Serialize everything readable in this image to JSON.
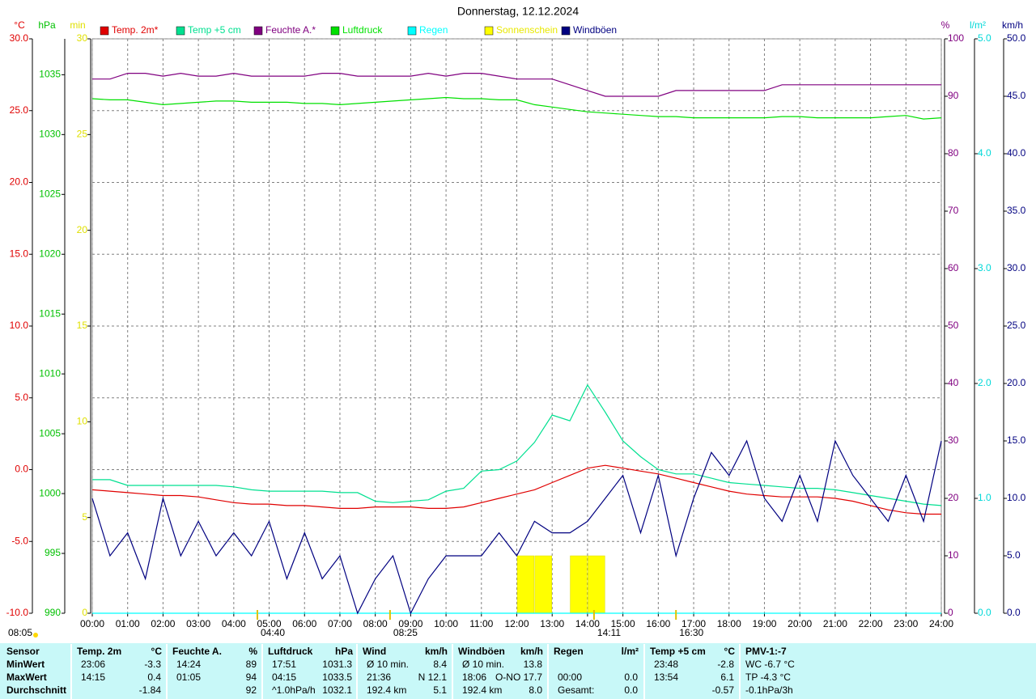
{
  "chart_data": {
    "type": "line",
    "title": "Donnerstag, 12.12.2024",
    "xlim": [
      0,
      24
    ],
    "xticks": [
      {
        "value": 0,
        "label": "00:00"
      },
      {
        "value": 1,
        "label": "01:00"
      },
      {
        "value": 2,
        "label": "02:00"
      },
      {
        "value": 3,
        "label": "03:00"
      },
      {
        "value": 4,
        "label": "04:00"
      },
      {
        "value": 5,
        "label": "05:00"
      },
      {
        "value": 6,
        "label": "06:00"
      },
      {
        "value": 7,
        "label": "07:00"
      },
      {
        "value": 8,
        "label": "08:00"
      },
      {
        "value": 9,
        "label": "09:00"
      },
      {
        "value": 10,
        "label": "10:00"
      },
      {
        "value": 11,
        "label": "11:00"
      },
      {
        "value": 12,
        "label": "12:00"
      },
      {
        "value": 13,
        "label": "13:00"
      },
      {
        "value": 14,
        "label": "14:00"
      },
      {
        "value": 15,
        "label": "15:00"
      },
      {
        "value": 16,
        "label": "16:00"
      },
      {
        "value": 17,
        "label": "17:00"
      },
      {
        "value": 18,
        "label": "18:00"
      },
      {
        "value": 19,
        "label": "19:00"
      },
      {
        "value": 20,
        "label": "20:00"
      },
      {
        "value": 21,
        "label": "21:00"
      },
      {
        "value": 22,
        "label": "22:00"
      },
      {
        "value": 23,
        "label": "23:00"
      },
      {
        "value": 24,
        "label": "24:00"
      }
    ],
    "xgrid": true,
    "x": [
      0,
      0.5,
      1,
      1.5,
      2,
      2.5,
      3,
      3.5,
      4,
      4.5,
      5,
      5.5,
      6,
      6.5,
      7,
      7.5,
      8,
      8.5,
      9,
      9.5,
      10,
      10.5,
      11,
      11.5,
      12,
      12.5,
      13,
      13.5,
      14,
      14.5,
      15,
      15.5,
      16,
      16.5,
      17,
      17.5,
      18,
      18.5,
      19,
      19.5,
      20,
      20.5,
      21,
      21.5,
      22,
      22.5,
      23,
      23.5,
      24
    ],
    "axes": {
      "temp": {
        "unit": "°C",
        "color": "#e00000",
        "ylim": [
          -10,
          30
        ],
        "grid": true,
        "yticks": [
          {
            "value": -10,
            "label": "-10.0"
          },
          {
            "value": -5,
            "label": "-5.0"
          },
          {
            "value": 0,
            "label": "0.0"
          },
          {
            "value": 5,
            "label": "5.0"
          },
          {
            "value": 10,
            "label": "10.0"
          },
          {
            "value": 15,
            "label": "15.0"
          },
          {
            "value": 20,
            "label": "20.0"
          },
          {
            "value": 25,
            "label": "25.0"
          },
          {
            "value": 30,
            "label": "30.0"
          }
        ]
      },
      "pressure": {
        "unit": "hPa",
        "color": "#00c000",
        "ylim": [
          990,
          1038
        ],
        "yticks": [
          990,
          995,
          1000,
          1005,
          1010,
          1015,
          1020,
          1025,
          1030,
          1035
        ]
      },
      "sun": {
        "unit": "min",
        "color": "#e0e000",
        "ylim": [
          0,
          30
        ],
        "yticks": [
          0,
          5,
          10,
          15,
          20,
          25,
          30
        ]
      },
      "humidity": {
        "unit": "%",
        "color": "#800080",
        "ylim": [
          0,
          100
        ],
        "yticks": [
          0,
          10,
          20,
          30,
          40,
          50,
          60,
          70,
          80,
          90,
          100
        ]
      },
      "rain": {
        "unit": "l/m²",
        "color": "#00d8d8",
        "ylim": [
          0,
          5
        ],
        "yticks": [
          {
            "value": 0,
            "label": "0.0"
          },
          {
            "value": 1,
            "label": "1.0"
          },
          {
            "value": 2,
            "label": "2.0"
          },
          {
            "value": 3,
            "label": "3.0"
          },
          {
            "value": 4,
            "label": "4.0"
          },
          {
            "value": 5,
            "label": "5.0"
          }
        ]
      },
      "wind": {
        "unit": "km/h",
        "color": "#000080",
        "ylim": [
          0,
          50
        ],
        "yticks": [
          {
            "value": 0,
            "label": "0.0"
          },
          {
            "value": 5,
            "label": "5.0"
          },
          {
            "value": 10,
            "label": "10.0"
          },
          {
            "value": 15,
            "label": "15.0"
          },
          {
            "value": 20,
            "label": "20.0"
          },
          {
            "value": 25,
            "label": "25.0"
          },
          {
            "value": 30,
            "label": "30.0"
          },
          {
            "value": 35,
            "label": "35.0"
          },
          {
            "value": 40,
            "label": "40.0"
          },
          {
            "value": 45,
            "label": "45.0"
          },
          {
            "value": 50,
            "label": "50.0"
          }
        ]
      }
    },
    "series": [
      {
        "name": "Temp. 2m*",
        "color": "#e00000",
        "axis": "temp",
        "type": "line",
        "values": [
          -1.4,
          -1.5,
          -1.6,
          -1.7,
          -1.8,
          -1.8,
          -1.9,
          -2.1,
          -2.3,
          -2.4,
          -2.4,
          -2.5,
          -2.5,
          -2.6,
          -2.7,
          -2.7,
          -2.6,
          -2.6,
          -2.6,
          -2.7,
          -2.7,
          -2.6,
          -2.3,
          -2.0,
          -1.7,
          -1.4,
          -0.9,
          -0.4,
          0.1,
          0.3,
          0.1,
          -0.1,
          -0.3,
          -0.6,
          -0.9,
          -1.2,
          -1.5,
          -1.7,
          -1.8,
          -1.9,
          -1.9,
          -1.9,
          -2.0,
          -2.2,
          -2.5,
          -2.8,
          -3.0,
          -3.1,
          -3.1
        ]
      },
      {
        "name": "Temp +5 cm",
        "color": "#00e090",
        "axis": "temp",
        "type": "line",
        "values": [
          -0.7,
          -0.7,
          -1.1,
          -1.1,
          -1.1,
          -1.1,
          -1.1,
          -1.1,
          -1.2,
          -1.4,
          -1.5,
          -1.5,
          -1.5,
          -1.5,
          -1.6,
          -1.6,
          -2.2,
          -2.3,
          -2.2,
          -2.1,
          -1.5,
          -1.3,
          -0.1,
          0.0,
          0.6,
          1.9,
          3.8,
          3.4,
          5.9,
          4.0,
          2.0,
          0.9,
          0.0,
          -0.3,
          -0.3,
          -0.6,
          -0.9,
          -1.0,
          -1.1,
          -1.2,
          -1.3,
          -1.3,
          -1.4,
          -1.6,
          -1.8,
          -2.0,
          -2.2,
          -2.4,
          -2.5
        ]
      },
      {
        "name": "Feuchte A.*",
        "color": "#800080",
        "axis": "humidity",
        "type": "line",
        "values": [
          93,
          93,
          94,
          94,
          93.5,
          94,
          93.5,
          93.5,
          94,
          93.5,
          93.5,
          93.5,
          93.5,
          94,
          94,
          93.5,
          93.5,
          93.5,
          93.5,
          94,
          93.5,
          94,
          94,
          93.5,
          93,
          93,
          93,
          92,
          91,
          90,
          90,
          90,
          90,
          91,
          91,
          91,
          91,
          91,
          91,
          92,
          92,
          92,
          92,
          92,
          92,
          92,
          92,
          92,
          92
        ]
      },
      {
        "name": "Luftdruck",
        "color": "#00e000",
        "axis": "pressure",
        "type": "line",
        "values": [
          1033.0,
          1032.9,
          1032.9,
          1032.7,
          1032.5,
          1032.6,
          1032.7,
          1032.8,
          1032.8,
          1032.7,
          1032.7,
          1032.7,
          1032.6,
          1032.6,
          1032.5,
          1032.6,
          1032.7,
          1032.8,
          1032.9,
          1033.0,
          1033.1,
          1033.0,
          1033.0,
          1032.9,
          1032.9,
          1032.5,
          1032.3,
          1032.1,
          1031.9,
          1031.8,
          1031.7,
          1031.6,
          1031.5,
          1031.5,
          1031.4,
          1031.4,
          1031.4,
          1031.4,
          1031.4,
          1031.5,
          1031.5,
          1031.4,
          1031.4,
          1031.4,
          1031.4,
          1031.5,
          1031.6,
          1031.3,
          1031.4
        ]
      },
      {
        "name": "Regen",
        "color": "#00ffff",
        "axis": "rain",
        "type": "line",
        "values": [
          0,
          0,
          0,
          0,
          0,
          0,
          0,
          0,
          0,
          0,
          0,
          0,
          0,
          0,
          0,
          0,
          0,
          0,
          0,
          0,
          0,
          0,
          0,
          0,
          0,
          0,
          0,
          0,
          0,
          0,
          0,
          0,
          0,
          0,
          0,
          0,
          0,
          0,
          0,
          0,
          0,
          0,
          0,
          0,
          0,
          0,
          0,
          0,
          0
        ]
      },
      {
        "name": "Sonnenschein",
        "color": "#ffff00",
        "axis": "sun",
        "type": "bar",
        "x": [
          12.25,
          12.75,
          13.75,
          14.25
        ],
        "values": [
          3,
          3,
          3,
          3
        ]
      },
      {
        "name": "Windböen",
        "color": "#000080",
        "axis": "wind",
        "type": "line",
        "values": [
          10,
          5,
          7,
          3,
          10,
          5,
          8,
          5,
          7,
          5,
          8,
          3,
          7,
          3,
          5,
          0,
          3,
          5,
          0,
          3,
          5,
          5,
          5,
          7,
          5,
          8,
          7,
          7,
          8,
          10,
          12,
          7,
          12,
          5,
          10,
          14,
          12,
          15,
          10,
          8,
          12,
          8,
          15,
          12,
          10,
          8,
          12,
          8,
          15
        ]
      }
    ],
    "annotations": [
      {
        "x": 4.667,
        "label": "04:40"
      },
      {
        "x": 8.417,
        "label": "08:25"
      },
      {
        "x": 14.183,
        "label": "14:11"
      },
      {
        "x": 16.5,
        "label": "16:30"
      }
    ],
    "corner_note": "08:05"
  },
  "table": {
    "row_labels": [
      "Sensor",
      "MinWert",
      "MaxWert",
      "Durchschnitt"
    ],
    "groups": [
      {
        "name": "Temp. 2m",
        "unit": "°C",
        "rows": [
          [
            "23:06",
            "-3.3"
          ],
          [
            "14:15",
            "0.4"
          ],
          [
            null,
            "-1.84"
          ]
        ]
      },
      {
        "name": "Feuchte A.",
        "unit": "%",
        "rows": [
          [
            "14:24",
            "89"
          ],
          [
            "01:05",
            "94"
          ],
          [
            null,
            "92"
          ]
        ]
      },
      {
        "name": "Luftdruck",
        "unit": "hPa",
        "rows": [
          [
            "17:51",
            "1031.3"
          ],
          [
            "04:15",
            "1033.5"
          ],
          [
            "^1.0hPa/h",
            "1032.1"
          ]
        ]
      },
      {
        "name": "Wind",
        "unit": "km/h",
        "rows": [
          [
            "Ø 10 min.",
            "8.4"
          ],
          [
            "21:36",
            "N 12.1"
          ],
          [
            "192.4 km",
            "5.1"
          ]
        ]
      },
      {
        "name": "Windböen",
        "unit": "km/h",
        "rows": [
          [
            "Ø 10 min.",
            "13.8"
          ],
          [
            "18:06",
            "O-NO 17.7"
          ],
          [
            "192.4 km",
            "8.0"
          ]
        ]
      },
      {
        "name": "Regen",
        "unit": "l/m²",
        "rows": [
          [
            null,
            null
          ],
          [
            "00:00",
            "0.0"
          ],
          [
            "Gesamt:",
            "0.0"
          ]
        ]
      },
      {
        "name": "Temp +5 cm",
        "unit": "°C",
        "rows": [
          [
            "23:48",
            "-2.8"
          ],
          [
            "13:54",
            "6.1"
          ],
          [
            null,
            "-0.57"
          ]
        ]
      },
      {
        "name": "PMV-1:-7",
        "rows": [
          [
            "WC -6.7 °C"
          ],
          [
            "TP -4.3 °C"
          ],
          [
            "-0.1hPa/3h"
          ]
        ]
      }
    ]
  }
}
